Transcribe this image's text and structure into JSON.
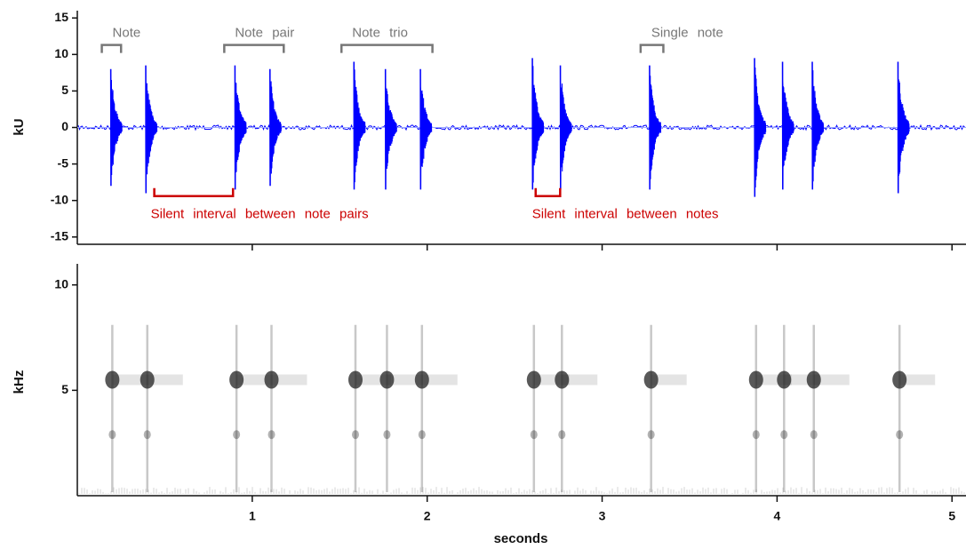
{
  "chart_data": [
    {
      "type": "waveform",
      "ylabel": "kU",
      "color": "#0000ff",
      "x": [
        0.2,
        0.4,
        0.91,
        1.11,
        1.59,
        1.77,
        1.97,
        2.61,
        2.77,
        3.28,
        3.88,
        4.04,
        4.21,
        4.7
      ],
      "values": [
        8,
        8.5,
        8.5,
        8,
        9,
        8,
        8,
        9.5,
        8.5,
        8.5,
        9.5,
        9,
        9,
        9
      ],
      "min_values": [
        -8,
        -9,
        -8.5,
        -8,
        -8.5,
        -8.5,
        -8.5,
        -8.5,
        -8.5,
        -8.5,
        -9.5,
        -8.5,
        -8.5,
        -9
      ],
      "xlim": [
        0,
        5.08
      ],
      "xticks": [
        1,
        2,
        3,
        4,
        5
      ],
      "ylim": [
        -16,
        16
      ],
      "yticks": [
        -15,
        -10,
        -5,
        0,
        5,
        10,
        15
      ],
      "annotations": [
        {
          "text": "Note",
          "x": [
            0.14,
            0.25
          ],
          "y": 11.3,
          "color": "#777777"
        },
        {
          "text": "Note pair",
          "x": [
            0.84,
            1.18
          ],
          "y": 11.3,
          "color": "#777777"
        },
        {
          "text": "Note trio",
          "x": [
            1.51,
            2.03
          ],
          "y": 11.3,
          "color": "#777777"
        },
        {
          "text": "Single note",
          "x": [
            3.22,
            3.35
          ],
          "y": 11.3,
          "color": "#777777"
        },
        {
          "text": "Silent interval between note pairs",
          "x": [
            0.44,
            0.89
          ],
          "y": -9.4,
          "color": "#cc0000"
        },
        {
          "text": "Silent interval between notes",
          "x": [
            2.62,
            2.76
          ],
          "y": -9.4,
          "color": "#cc0000"
        }
      ]
    },
    {
      "type": "spectrogram",
      "ylabel": "kHz",
      "xlabel": "seconds",
      "color": "#222222",
      "x": [
        0.2,
        0.4,
        0.91,
        1.11,
        1.59,
        1.77,
        1.97,
        2.61,
        2.77,
        3.28,
        3.88,
        4.04,
        4.21,
        4.7
      ],
      "values": [
        5.5,
        5.5,
        5.5,
        5.5,
        5.5,
        5.5,
        5.5,
        5.5,
        5.5,
        5.5,
        5.5,
        5.5,
        5.5,
        5.5
      ],
      "xlim": [
        0,
        5.08
      ],
      "xticks": [
        1,
        2,
        3,
        4,
        5
      ],
      "ylim": [
        0,
        11
      ],
      "yticks": [
        5,
        10
      ]
    }
  ]
}
